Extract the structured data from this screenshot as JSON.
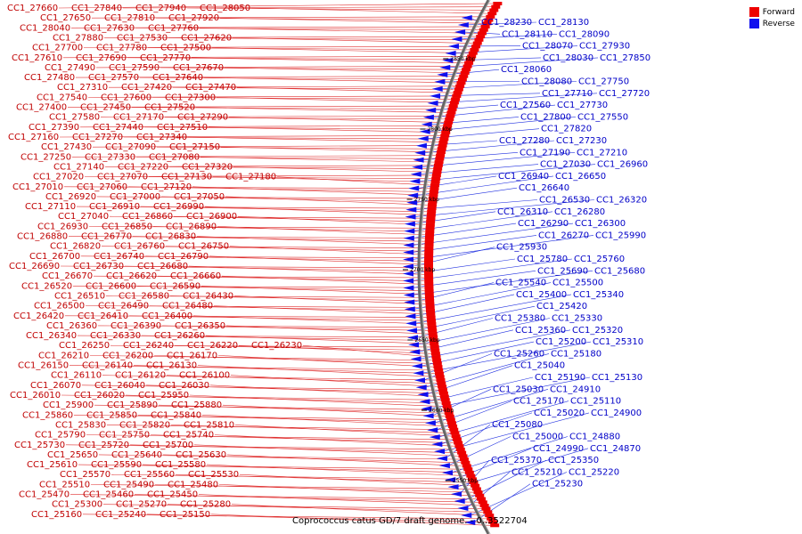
{
  "caption": "Coprococcus catus GD/7 draft genome. - 0..3522704",
  "legend": {
    "forward": "Forward",
    "reverse": "Reverse"
  },
  "colors": {
    "forward": "#ee0000",
    "reverse": "#1010ee",
    "forward_line": "#e03030",
    "reverse_line": "#2030e0"
  },
  "ticks": [
    "2850 kbp",
    "2800 kbp",
    "2750 kbp",
    "2700 kbp",
    "2650 kbp",
    "2600 kbp",
    "2550 kbp"
  ],
  "forward_labels": [
    "CC1_27660",
    "CC1_27840",
    "CC1_27940",
    "CC1_28050",
    "CC1_27650",
    "CC1_27810",
    "CC1_27920",
    "CC1_28040",
    "CC1_27630",
    "CC1_27760",
    "CC1_27880",
    "CC1_27530",
    "CC1_27620",
    "CC1_27700",
    "CC1_27780",
    "CC1_27500",
    "CC1_27610",
    "CC1_27690",
    "CC1_27770",
    "CC1_27490",
    "CC1_27590",
    "CC1_27670",
    "CC1_27480",
    "CC1_27570",
    "CC1_27640",
    "CC1_27310",
    "CC1_27420",
    "CC1_27470",
    "CC1_27540",
    "CC1_27600",
    "CC1_27300",
    "CC1_27400",
    "CC1_27450",
    "CC1_27520",
    "CC1_27580",
    "CC1_27170",
    "CC1_27290",
    "CC1_27390",
    "CC1_27440",
    "CC1_27510",
    "CC1_27160",
    "CC1_27270",
    "CC1_27340",
    "CC1_27430",
    "CC1_27090",
    "CC1_27150",
    "CC1_27250",
    "CC1_27330",
    "CC1_27080",
    "CC1_27140",
    "CC1_27220",
    "CC1_27320",
    "CC1_27020",
    "CC1_27070",
    "CC1_27130",
    "CC1_27180",
    "CC1_27010",
    "CC1_27060",
    "CC1_27120",
    "CC1_26920",
    "CC1_27000",
    "CC1_27050",
    "CC1_27110",
    "CC1_26910",
    "CC1_26990",
    "CC1_27040",
    "CC1_26860",
    "CC1_26900",
    "CC1_26930",
    "CC1_26850",
    "CC1_26890",
    "CC1_26880",
    "CC1_26770",
    "CC1_26830",
    "CC1_26820",
    "CC1_26760",
    "CC1_26750",
    "CC1_26700",
    "CC1_26740",
    "CC1_26790",
    "CC1_26690",
    "CC1_26730",
    "CC1_26680",
    "CC1_26670",
    "CC1_26620",
    "CC1_26660",
    "CC1_26520",
    "CC1_26600",
    "CC1_26590",
    "CC1_26510",
    "CC1_26580",
    "CC1_26430",
    "CC1_26500",
    "CC1_26490",
    "CC1_26480",
    "CC1_26420",
    "CC1_26410",
    "CC1_26400",
    "CC1_26360",
    "CC1_26390",
    "CC1_26350",
    "CC1_26340",
    "CC1_26330",
    "CC1_26260",
    "CC1_26250",
    "CC1_26240",
    "CC1_26220",
    "CC1_26230",
    "CC1_26210",
    "CC1_26200",
    "CC1_26170",
    "CC1_26150",
    "CC1_26140",
    "CC1_26130",
    "CC1_26110",
    "CC1_26120",
    "CC1_26100",
    "CC1_26070",
    "CC1_26040",
    "CC1_26030",
    "CC1_26010",
    "CC1_26020",
    "CC1_25950",
    "CC1_25900",
    "CC1_25890",
    "CC1_25880",
    "CC1_25860",
    "CC1_25850",
    "CC1_25840",
    "CC1_25830",
    "CC1_25820",
    "CC1_25810",
    "CC1_25790",
    "CC1_25750",
    "CC1_25740",
    "CC1_25730",
    "CC1_25720",
    "CC1_25700",
    "CC1_25650",
    "CC1_25640",
    "CC1_25630",
    "CC1_25610",
    "CC1_25590",
    "CC1_25580",
    "CC1_25570",
    "CC1_25560",
    "CC1_25530",
    "CC1_25510",
    "CC1_25490",
    "CC1_25480",
    "CC1_25470",
    "CC1_25460",
    "CC1_25450",
    "CC1_25300",
    "CC1_25270",
    "CC1_25280",
    "CC1_25160",
    "CC1_25240",
    "CC1_25150"
  ],
  "reverse_labels": [
    "CC1_28230",
    "CC1_28130",
    "CC1_28110",
    "CC1_28090",
    "CC1_28070",
    "CC1_27930",
    "CC1_28030",
    "CC1_27850",
    "CC1_28060",
    "CC1_28080",
    "CC1_27750",
    "CC1_27710",
    "CC1_27720",
    "CC1_27560",
    "CC1_27730",
    "CC1_27800",
    "CC1_27550",
    "CC1_27820",
    "CC1_27280",
    "CC1_27230",
    "CC1_27190",
    "CC1_27210",
    "CC1_27030",
    "CC1_26960",
    "CC1_26940",
    "CC1_26650",
    "CC1_26640",
    "CC1_26530",
    "CC1_26320",
    "CC1_26310",
    "CC1_26280",
    "CC1_26290",
    "CC1_26300",
    "CC1_26270",
    "CC1_25990",
    "CC1_25930",
    "CC1_25780",
    "CC1_25760",
    "CC1_25690",
    "CC1_25680",
    "CC1_25540",
    "CC1_25500",
    "CC1_25400",
    "CC1_25340",
    "CC1_25420",
    "CC1_25380",
    "CC1_25330",
    "CC1_25360",
    "CC1_25320",
    "CC1_25200",
    "CC1_25310",
    "CC1_25260",
    "CC1_25180",
    "CC1_25040",
    "CC1_25190",
    "CC1_25130",
    "CC1_25030",
    "CC1_24910",
    "CC1_25170",
    "CC1_25110",
    "CC1_25020",
    "CC1_24900",
    "CC1_25080",
    "CC1_25000",
    "CC1_24880",
    "CC1_24990",
    "CC1_24870",
    "CC1_25370",
    "CC1_25350",
    "CC1_25210",
    "CC1_25220",
    "CC1_25230"
  ]
}
